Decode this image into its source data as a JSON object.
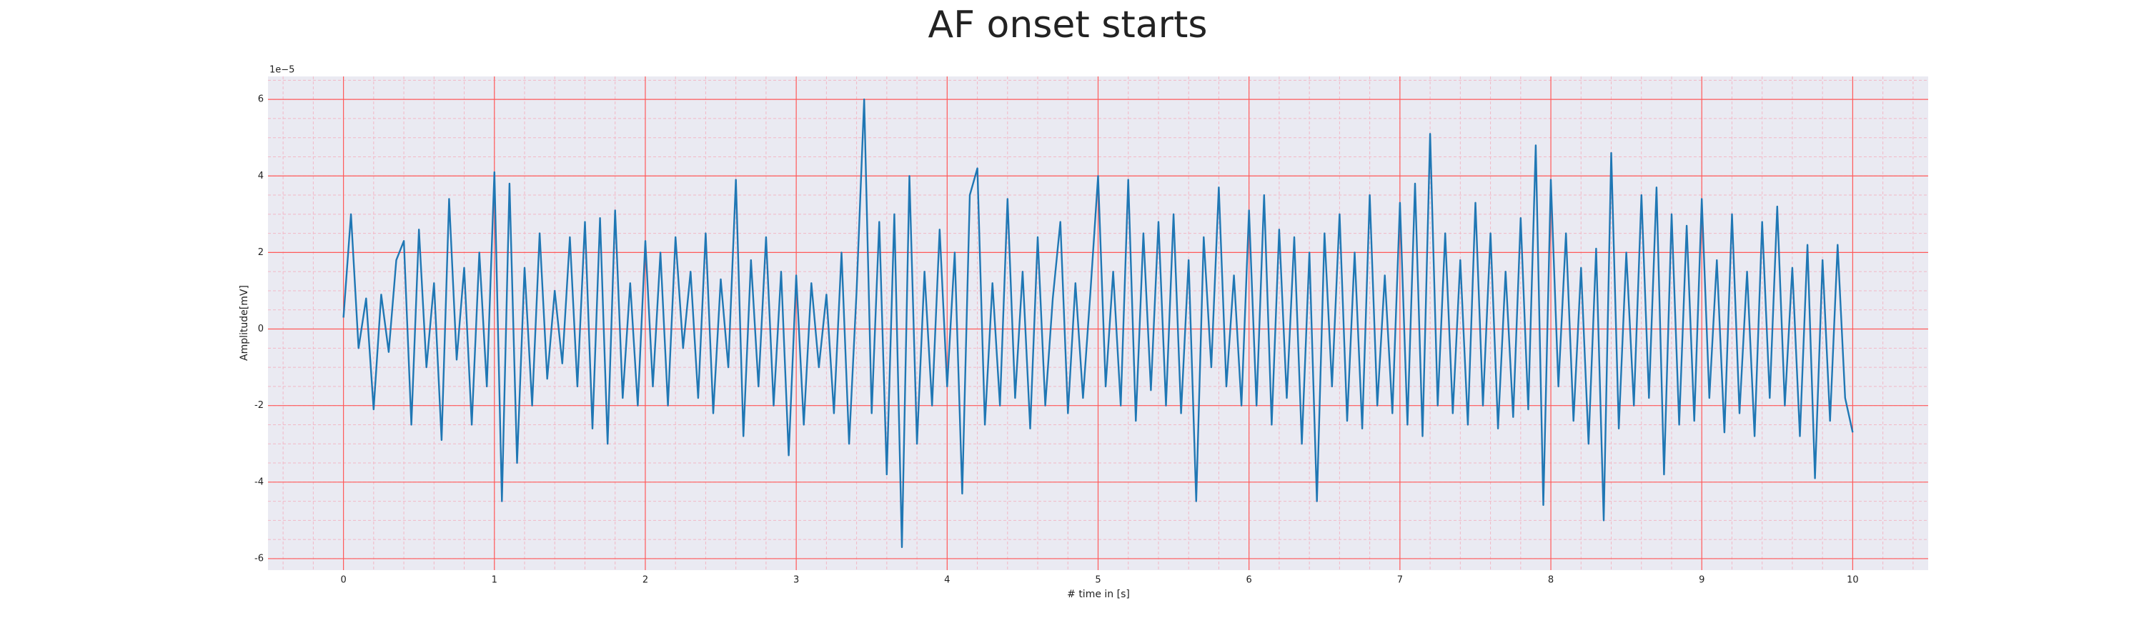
{
  "chart_data": {
    "type": "line",
    "title": "AF onset starts",
    "x_label": "# time in [s]",
    "y_label": "Amplitude[mV]",
    "y_offset_label": "1e−5",
    "xlim": [
      -0.5,
      10.5
    ],
    "ylim": [
      -6.3,
      6.6
    ],
    "xticks": [
      0,
      1,
      2,
      3,
      4,
      5,
      6,
      7,
      8,
      9,
      10
    ],
    "yticks": [
      -6,
      -4,
      -2,
      0,
      2,
      4,
      6
    ],
    "minor_xticks": [
      -0.4,
      -0.2,
      0,
      0.2,
      0.4,
      0.6,
      0.8,
      1,
      1.2,
      1.4,
      1.6,
      1.8,
      2,
      2.2,
      2.4,
      2.6,
      2.8,
      3,
      3.2,
      3.4,
      3.6,
      3.8,
      4,
      4.2,
      4.4,
      4.6,
      4.8,
      5,
      5.2,
      5.4,
      5.6,
      5.8,
      6,
      6.2,
      6.4,
      6.6,
      6.8,
      7,
      7.2,
      7.4,
      7.6,
      7.8,
      8,
      8.2,
      8.4,
      8.6,
      8.8,
      9,
      9.2,
      9.4,
      9.6,
      9.8,
      10,
      10.2,
      10.4
    ],
    "minor_yticks": [
      -6,
      -5.5,
      -5,
      -4.5,
      -4,
      -3.5,
      -3,
      -2.5,
      -2,
      -1.5,
      -1,
      -0.5,
      0,
      0.5,
      1,
      1.5,
      2,
      2.5,
      3,
      3.5,
      4,
      4.5,
      5,
      5.5,
      6,
      6.5
    ],
    "grid": true,
    "grid_color": "#ff5a5a",
    "minor_grid": true,
    "minor_grid_color": "#f2b8c6",
    "background": "#eaeaf2",
    "x": [
      0,
      0.05,
      0.1,
      0.15,
      0.2,
      0.25,
      0.3,
      0.35,
      0.4,
      0.45,
      0.5,
      0.55,
      0.6,
      0.65,
      0.7,
      0.75,
      0.8,
      0.85,
      0.9,
      0.95,
      1,
      1.05,
      1.1,
      1.15,
      1.2,
      1.25,
      1.3,
      1.35,
      1.4,
      1.45,
      1.5,
      1.55,
      1.6,
      1.65,
      1.7,
      1.75,
      1.8,
      1.85,
      1.9,
      1.95,
      2,
      2.05,
      2.1,
      2.15,
      2.2,
      2.25,
      2.3,
      2.35,
      2.4,
      2.45,
      2.5,
      2.55,
      2.6,
      2.65,
      2.7,
      2.75,
      2.8,
      2.85,
      2.9,
      2.95,
      3,
      3.05,
      3.1,
      3.15,
      3.2,
      3.25,
      3.3,
      3.35,
      3.4,
      3.45,
      3.5,
      3.55,
      3.6,
      3.65,
      3.7,
      3.75,
      3.8,
      3.85,
      3.9,
      3.95,
      4,
      4.05,
      4.1,
      4.15,
      4.2,
      4.25,
      4.3,
      4.35,
      4.4,
      4.45,
      4.5,
      4.55,
      4.6,
      4.65,
      4.7,
      4.75,
      4.8,
      4.85,
      4.9,
      4.95,
      5,
      5.05,
      5.1,
      5.15,
      5.2,
      5.25,
      5.3,
      5.35,
      5.4,
      5.45,
      5.5,
      5.55,
      5.6,
      5.65,
      5.7,
      5.75,
      5.8,
      5.85,
      5.9,
      5.95,
      6,
      6.05,
      6.1,
      6.15,
      6.2,
      6.25,
      6.3,
      6.35,
      6.4,
      6.45,
      6.5,
      6.55,
      6.6,
      6.65,
      6.7,
      6.75,
      6.8,
      6.85,
      6.9,
      6.95,
      7,
      7.05,
      7.1,
      7.15,
      7.2,
      7.25,
      7.3,
      7.35,
      7.4,
      7.45,
      7.5,
      7.55,
      7.6,
      7.65,
      7.7,
      7.75,
      7.8,
      7.85,
      7.9,
      7.95,
      8,
      8.05,
      8.1,
      8.15,
      8.2,
      8.25,
      8.3,
      8.35,
      8.4,
      8.45,
      8.5,
      8.55,
      8.6,
      8.65,
      8.7,
      8.75,
      8.8,
      8.85,
      8.9,
      8.95,
      9,
      9.05,
      9.1,
      9.15,
      9.2,
      9.25,
      9.3,
      9.35,
      9.4,
      9.45,
      9.5,
      9.55,
      9.6,
      9.65,
      9.7,
      9.75,
      9.8,
      9.85,
      9.9,
      9.95,
      10
    ],
    "series": [
      {
        "color": "#1f77b4",
        "values": [
          0.3,
          3.0,
          -0.5,
          0.8,
          -2.1,
          0.9,
          -0.6,
          1.8,
          2.3,
          -2.5,
          2.6,
          -1.0,
          1.2,
          -2.9,
          3.4,
          -0.8,
          1.6,
          -2.5,
          2.0,
          -1.5,
          4.1,
          -4.5,
          3.8,
          -3.5,
          1.6,
          -2.0,
          2.5,
          -1.3,
          1.0,
          -0.9,
          2.4,
          -1.5,
          2.8,
          -2.6,
          2.9,
          -3.0,
          3.1,
          -1.8,
          1.2,
          -2.0,
          2.3,
          -1.5,
          2.0,
          -2.0,
          2.4,
          -0.5,
          1.5,
          -1.8,
          2.5,
          -2.2,
          1.3,
          -1.0,
          3.9,
          -2.8,
          1.8,
          -1.5,
          2.4,
          -2.0,
          1.5,
          -3.3,
          1.4,
          -2.5,
          1.2,
          -1.0,
          0.9,
          -2.2,
          2.0,
          -3.0,
          1.0,
          6.0,
          -2.2,
          2.8,
          -3.8,
          3.0,
          -5.7,
          4.0,
          -3.0,
          1.5,
          -2.0,
          2.6,
          -1.5,
          2.0,
          -4.3,
          3.5,
          4.2,
          -2.5,
          1.2,
          -2.0,
          3.4,
          -1.8,
          1.5,
          -2.6,
          2.4,
          -2.0,
          0.8,
          2.8,
          -2.2,
          1.2,
          -1.8,
          1.0,
          4.0,
          -1.5,
          1.5,
          -2.0,
          3.9,
          -2.4,
          2.5,
          -1.6,
          2.8,
          -2.0,
          3.0,
          -2.2,
          1.8,
          -4.5,
          2.4,
          -1.0,
          3.7,
          -1.5,
          1.4,
          -2.0,
          3.1,
          -2.0,
          3.5,
          -2.5,
          2.6,
          -1.8,
          2.4,
          -3.0,
          2.0,
          -4.5,
          2.5,
          -1.5,
          3.0,
          -2.4,
          2.0,
          -2.6,
          3.5,
          -2.0,
          1.4,
          -2.2,
          3.3,
          -2.5,
          3.8,
          -2.8,
          5.1,
          -2.0,
          2.5,
          -2.2,
          1.8,
          -2.5,
          3.3,
          -2.0,
          2.5,
          -2.6,
          1.5,
          -2.3,
          2.9,
          -2.1,
          4.8,
          -4.6,
          3.9,
          -1.5,
          2.5,
          -2.4,
          1.6,
          -3.0,
          2.1,
          -5.0,
          4.6,
          -2.6,
          2.0,
          -2.0,
          3.5,
          -1.8,
          3.7,
          -3.8,
          3.0,
          -2.5,
          2.7,
          -2.4,
          3.4,
          -1.8,
          1.8,
          -2.7,
          3.0,
          -2.2,
          1.5,
          -2.8,
          2.8,
          -1.8,
          3.2,
          -2.0,
          1.6,
          -2.8,
          2.2,
          -3.9,
          1.8,
          -2.4,
          2.2,
          -1.8,
          -2.7
        ]
      }
    ]
  }
}
